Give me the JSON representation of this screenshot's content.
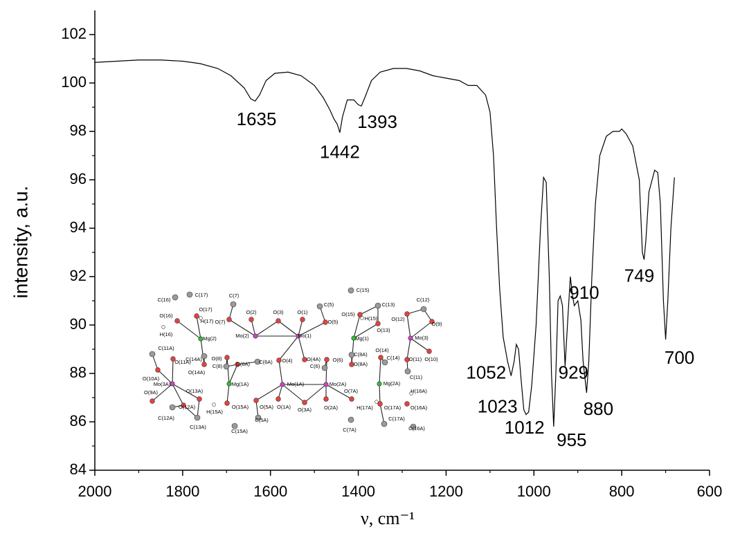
{
  "chart_data": {
    "type": "line",
    "ylabel": "intensity, a.u.",
    "xlabel": "ν, cm⁻¹",
    "xlim": [
      2000,
      600
    ],
    "ylim": [
      84,
      103
    ],
    "xticks": [
      2000,
      1800,
      1600,
      1400,
      1200,
      1000,
      800,
      600
    ],
    "xminorticks": [
      1900,
      1700,
      1500,
      1300,
      1100,
      900,
      700
    ],
    "yticks": [
      84,
      86,
      88,
      90,
      92,
      94,
      96,
      98,
      100,
      102
    ],
    "yminorticks": [
      85,
      87,
      89,
      91,
      93,
      95,
      97,
      99,
      101
    ],
    "series": [
      {
        "color": "#000000",
        "x": [
          2000,
          1950,
          1900,
          1850,
          1800,
          1760,
          1720,
          1690,
          1660,
          1645,
          1635,
          1625,
          1610,
          1590,
          1560,
          1530,
          1500,
          1480,
          1465,
          1455,
          1448,
          1442,
          1436,
          1425,
          1410,
          1400,
          1393,
          1385,
          1370,
          1350,
          1320,
          1290,
          1260,
          1230,
          1200,
          1170,
          1150,
          1130,
          1110,
          1100,
          1092,
          1085,
          1078,
          1070,
          1060,
          1052,
          1045,
          1040,
          1035,
          1028,
          1023,
          1018,
          1012,
          1005,
          995,
          985,
          978,
          972,
          965,
          960,
          955,
          950,
          945,
          940,
          935,
          929,
          922,
          917,
          912,
          908,
          900,
          893,
          888,
          880,
          875,
          868,
          860,
          850,
          835,
          820,
          805,
          800,
          790,
          775,
          760,
          753,
          749,
          745,
          738,
          725,
          718,
          712,
          705,
          700,
          695,
          688,
          680
        ],
        "values": [
          100.85,
          100.9,
          100.95,
          100.95,
          100.9,
          100.8,
          100.6,
          100.3,
          99.8,
          99.35,
          99.25,
          99.5,
          100.1,
          100.4,
          100.45,
          100.3,
          99.9,
          99.4,
          98.9,
          98.5,
          98.3,
          97.95,
          98.6,
          99.3,
          99.3,
          99.1,
          99.05,
          99.4,
          100.1,
          100.45,
          100.6,
          100.6,
          100.5,
          100.3,
          100.2,
          100.1,
          99.9,
          99.9,
          99.5,
          98.8,
          97.0,
          94.0,
          91.5,
          89.5,
          88.5,
          87.9,
          88.5,
          89.2,
          89.0,
          87.5,
          86.5,
          86.3,
          86.4,
          87.5,
          90.0,
          94.0,
          96.1,
          95.9,
          92.0,
          88.0,
          85.8,
          88.0,
          91.0,
          91.2,
          90.8,
          88.3,
          90.5,
          92.0,
          91.2,
          90.8,
          91.0,
          90.2,
          88.5,
          87.2,
          88.5,
          92.0,
          95.0,
          97.0,
          97.8,
          98.0,
          98.0,
          98.1,
          97.9,
          97.4,
          96.0,
          93.0,
          92.7,
          93.5,
          95.5,
          96.4,
          96.3,
          95.0,
          91.0,
          89.4,
          91.0,
          94.0,
          96.1
        ]
      }
    ],
    "annotations": [
      {
        "text": "1635",
        "x": 1635,
        "y": 99.25
      },
      {
        "text": "1442",
        "x": 1442,
        "y": 97.95
      },
      {
        "text": "1393",
        "x": 1393,
        "y": 99.05
      },
      {
        "text": "1052",
        "x": 1052,
        "y": 87.9
      },
      {
        "text": "1023",
        "x": 1023,
        "y": 86.5
      },
      {
        "text": "1012",
        "x": 1012,
        "y": 86.4
      },
      {
        "text": "955",
        "x": 955,
        "y": 85.8
      },
      {
        "text": "929",
        "x": 929,
        "y": 88.3
      },
      {
        "text": "910",
        "x": 917,
        "y": 92.0
      },
      {
        "text": "880",
        "x": 880,
        "y": 87.2
      },
      {
        "text": "749",
        "x": 749,
        "y": 92.7
      },
      {
        "text": "700",
        "x": 700,
        "y": 89.4
      }
    ]
  },
  "inset": {
    "atoms": [
      "C(16)",
      "C(17)",
      "O(17)",
      "O(16)",
      "H(17)",
      "H(16)",
      "O(7)",
      "C(7)",
      "O(2)",
      "Mo(2)",
      "O(3)",
      "O(1)",
      "Mo(1)",
      "C(5)",
      "O(5)",
      "C(15)",
      "O(15)",
      "H(15)",
      "C(13)",
      "O(13)",
      "Mg(1)",
      "O(12)",
      "C(12)",
      "O(9)",
      "Mo(3)",
      "O(10)",
      "Mg(2)",
      "C(11A)",
      "O(11A)",
      "C(14A)",
      "O(14A)",
      "C(8)",
      "O(8)",
      "O(6A)",
      "C(6A)",
      "O(4)",
      "O(4A)",
      "C(6)",
      "O(6)",
      "C(8A)",
      "O(8A)",
      "O(14)",
      "C(14)",
      "O(11)",
      "C(11)",
      "O(10A)",
      "Mo(3A)",
      "Mg(1A)",
      "Mo(1A)",
      "Mo(2A)",
      "Mg(2A)",
      "O(9A)",
      "O(13A)",
      "O(7A)",
      "H(16A)",
      "O(12A)",
      "C(12A)",
      "H(15A)",
      "O(15A)",
      "O(5A)",
      "O(1A)",
      "O(3A)",
      "O(2A)",
      "H(17A)",
      "O(17A)",
      "O(16A)",
      "C(13A)",
      "C(15A)",
      "C(5A)",
      "C(7A)",
      "C(17A)",
      "C(16A)"
    ]
  }
}
